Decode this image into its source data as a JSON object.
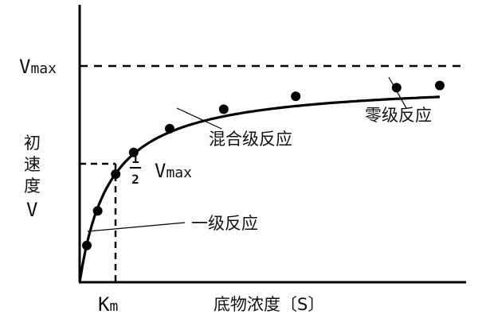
{
  "chart_data": {
    "type": "line",
    "title": "",
    "xlabel": "底物浓度〔S〕",
    "ylabel": "初速度V",
    "ylabel_chars": [
      "初",
      "速",
      "度",
      "V"
    ],
    "xlim": [
      0,
      10
    ],
    "ylim": [
      0,
      1.2
    ],
    "vmax": 1.0,
    "km": 1.0,
    "grid": false,
    "colors": {
      "curve": "#000000",
      "points": "#000000",
      "axes": "#000000"
    },
    "series": [
      {
        "points": [
          {
            "x": 0.2,
            "y": 0.17
          },
          {
            "x": 0.5,
            "y": 0.33
          },
          {
            "x": 1.0,
            "y": 0.5
          },
          {
            "x": 1.5,
            "y": 0.6
          },
          {
            "x": 2.5,
            "y": 0.71
          },
          {
            "x": 4.0,
            "y": 0.8
          },
          {
            "x": 6.0,
            "y": 0.86
          },
          {
            "x": 8.8,
            "y": 0.9
          },
          {
            "x": 10.0,
            "y": 0.91
          }
        ]
      }
    ],
    "vmax_label_main": "V",
    "vmax_label_sub": "max",
    "half_label_num": "1",
    "half_label_den": "2",
    "km_label_main": "K",
    "km_label_sub": "m",
    "annotations": [
      {
        "text": "零级反应",
        "target_x": 9.2
      },
      {
        "text": "混合级反应",
        "target_x": 2.8
      },
      {
        "text": "一级反应",
        "target_x": 0.3
      }
    ]
  }
}
